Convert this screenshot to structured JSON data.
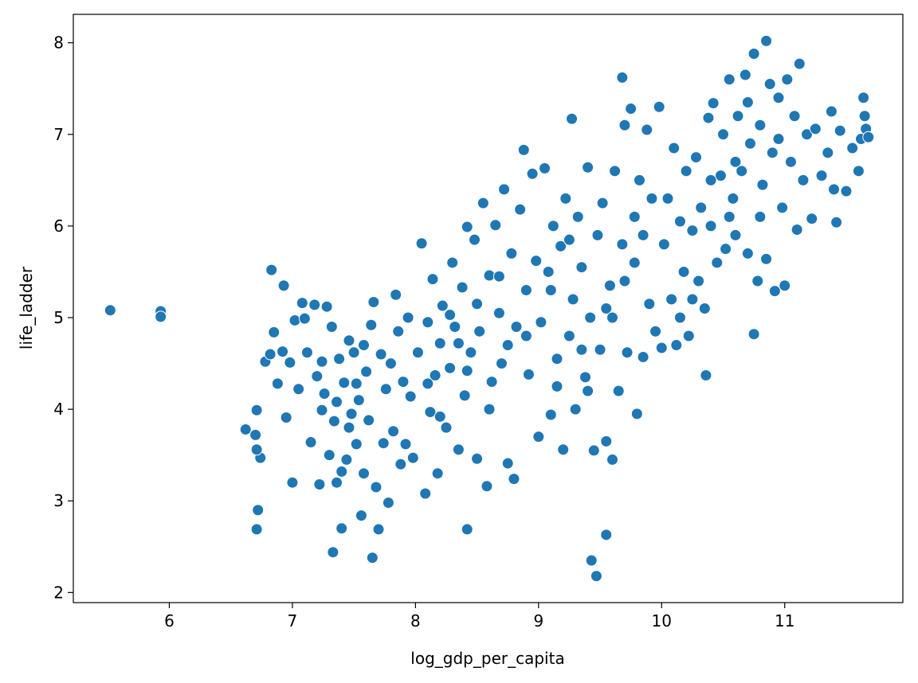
{
  "chart_data": {
    "type": "scatter",
    "xlabel": "log_gdp_per_capita",
    "ylabel": "life_ladder",
    "color": "#1f77b4",
    "xlim": [
      5.22,
      11.96
    ],
    "ylim": [
      1.89,
      8.31
    ],
    "xticks": [
      6,
      7,
      8,
      9,
      10,
      11
    ],
    "yticks": [
      2,
      3,
      4,
      5,
      6,
      7,
      8
    ],
    "x": [
      5.52,
      5.93,
      5.93,
      9.47,
      9.43,
      9.55,
      8.42,
      7.65,
      7.33,
      6.71,
      6.72,
      10.36,
      10.75,
      11.42,
      11.64,
      10.85,
      9.68,
      9.27,
      6.83,
      6.93,
      6.62,
      6.7,
      6.71,
      6.74,
      6.71,
      6.78,
      6.82,
      6.85,
      6.88,
      6.92,
      6.95,
      6.98,
      7.0,
      7.02,
      7.05,
      7.08,
      7.1,
      7.12,
      7.15,
      7.18,
      7.2,
      7.22,
      7.24,
      7.26,
      7.28,
      7.3,
      7.32,
      7.34,
      7.36,
      7.38,
      7.4,
      7.42,
      7.44,
      7.46,
      7.48,
      7.5,
      7.52,
      7.54,
      7.56,
      7.58,
      7.6,
      7.62,
      7.64,
      7.66,
      7.68,
      7.7,
      7.72,
      7.74,
      7.76,
      7.78,
      7.8,
      7.82,
      7.84,
      7.86,
      7.88,
      7.9,
      7.92,
      7.94,
      7.96,
      7.98,
      7.36,
      7.46,
      7.24,
      7.58,
      7.52,
      7.4,
      8.02,
      8.05,
      8.08,
      8.1,
      8.12,
      8.14,
      8.16,
      8.18,
      8.2,
      8.22,
      8.25,
      8.28,
      8.3,
      8.32,
      8.35,
      8.38,
      8.4,
      8.42,
      8.45,
      8.48,
      8.5,
      8.52,
      8.55,
      8.58,
      8.6,
      8.62,
      8.65,
      8.68,
      8.7,
      8.72,
      8.75,
      8.78,
      8.8,
      8.82,
      8.85,
      8.88,
      8.9,
      8.92,
      8.95,
      8.98,
      8.1,
      8.2,
      8.35,
      8.5,
      8.6,
      8.75,
      8.28,
      8.42,
      8.68,
      8.9,
      9.0,
      9.02,
      9.05,
      9.08,
      9.1,
      9.12,
      9.15,
      9.18,
      9.2,
      9.22,
      9.25,
      9.28,
      9.3,
      9.32,
      9.35,
      9.38,
      9.4,
      9.42,
      9.45,
      9.48,
      9.5,
      9.52,
      9.55,
      9.58,
      9.6,
      9.62,
      9.65,
      9.68,
      9.7,
      9.72,
      9.75,
      9.78,
      9.8,
      9.82,
      9.85,
      9.88,
      9.9,
      9.92,
      9.95,
      9.98,
      9.1,
      9.25,
      9.4,
      9.55,
      9.7,
      9.85,
      9.15,
      9.35,
      9.6,
      9.78,
      10.0,
      10.02,
      10.05,
      10.08,
      10.1,
      10.12,
      10.15,
      10.18,
      10.2,
      10.22,
      10.25,
      10.28,
      10.3,
      10.32,
      10.35,
      10.38,
      10.4,
      10.42,
      10.45,
      10.48,
      10.5,
      10.52,
      10.55,
      10.58,
      10.6,
      10.62,
      10.65,
      10.68,
      10.7,
      10.72,
      10.75,
      10.78,
      10.8,
      10.82,
      10.85,
      10.88,
      10.9,
      10.92,
      10.95,
      10.98,
      11.0,
      11.02,
      11.05,
      11.08,
      11.1,
      11.12,
      11.15,
      11.18,
      11.22,
      11.25,
      11.3,
      11.35,
      11.38,
      11.4,
      11.45,
      11.5,
      11.55,
      11.6,
      11.62,
      11.65,
      11.66,
      11.68,
      10.8,
      10.6,
      10.7,
      10.95,
      10.4,
      10.25,
      10.15,
      10.55
    ],
    "y": [
      5.08,
      5.07,
      5.01,
      2.18,
      2.35,
      2.63,
      2.69,
      2.38,
      2.44,
      2.69,
      2.9,
      4.37,
      4.82,
      6.04,
      7.4,
      8.02,
      7.62,
      7.17,
      5.52,
      5.35,
      3.78,
      3.72,
      3.99,
      3.47,
      3.56,
      4.52,
      4.6,
      4.84,
      4.28,
      4.63,
      3.91,
      4.51,
      3.2,
      4.97,
      4.22,
      5.16,
      4.99,
      4.62,
      3.64,
      5.14,
      4.36,
      3.18,
      3.99,
      4.17,
      5.12,
      3.5,
      4.9,
      3.87,
      3.2,
      4.55,
      2.7,
      4.29,
      3.45,
      4.75,
      3.95,
      4.62,
      3.62,
      4.1,
      2.84,
      3.3,
      4.41,
      3.88,
      4.92,
      5.17,
      3.15,
      2.69,
      4.6,
      3.63,
      4.22,
      2.98,
      4.5,
      3.76,
      5.25,
      4.85,
      3.4,
      4.3,
      3.62,
      5.0,
      4.14,
      3.47,
      4.08,
      3.8,
      4.52,
      4.7,
      4.28,
      3.32,
      4.62,
      5.81,
      3.08,
      4.95,
      3.97,
      5.42,
      4.37,
      3.3,
      4.72,
      5.13,
      3.8,
      4.45,
      5.6,
      4.9,
      3.56,
      5.33,
      4.15,
      5.99,
      4.62,
      5.85,
      3.46,
      4.85,
      6.25,
      3.16,
      5.46,
      4.3,
      6.01,
      5.05,
      4.5,
      6.4,
      3.41,
      5.7,
      3.24,
      4.9,
      6.18,
      6.83,
      5.3,
      4.38,
      6.57,
      5.62,
      4.28,
      3.92,
      4.72,
      5.15,
      4.0,
      4.7,
      5.03,
      4.42,
      5.45,
      4.8,
      3.7,
      4.95,
      6.63,
      5.5,
      3.94,
      6.0,
      4.55,
      5.78,
      3.56,
      6.3,
      4.8,
      5.2,
      4.0,
      6.1,
      5.55,
      4.35,
      6.64,
      5.0,
      3.55,
      5.9,
      4.65,
      6.25,
      3.65,
      5.35,
      3.45,
      6.6,
      4.2,
      5.8,
      7.1,
      4.62,
      7.28,
      5.6,
      3.95,
      6.5,
      4.57,
      7.05,
      5.15,
      6.3,
      4.85,
      7.3,
      5.3,
      5.85,
      4.2,
      5.1,
      5.4,
      5.9,
      4.25,
      4.65,
      5.0,
      6.1,
      4.67,
      5.8,
      6.3,
      5.2,
      6.85,
      4.7,
      6.05,
      5.5,
      6.6,
      4.8,
      5.95,
      6.75,
      5.4,
      6.2,
      5.1,
      7.18,
      6.0,
      7.34,
      5.6,
      6.55,
      7.0,
      5.75,
      7.6,
      6.3,
      5.9,
      7.2,
      6.6,
      7.65,
      5.7,
      6.9,
      7.88,
      5.4,
      7.1,
      6.45,
      5.64,
      7.55,
      6.8,
      5.29,
      7.4,
      6.2,
      5.35,
      7.6,
      6.7,
      7.2,
      5.96,
      7.77,
      6.5,
      7.0,
      6.08,
      7.06,
      6.55,
      6.8,
      7.25,
      6.4,
      7.04,
      6.38,
      6.85,
      6.6,
      6.95,
      7.2,
      7.06,
      6.97,
      6.1,
      6.7,
      7.35,
      6.95,
      6.5,
      5.2,
      5.0,
      6.1
    ]
  }
}
